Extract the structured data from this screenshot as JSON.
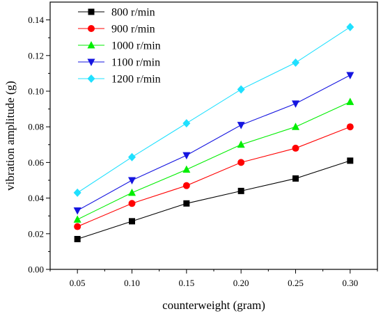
{
  "chart_data": {
    "type": "line",
    "xlabel": "counterweight (gram)",
    "ylabel": "vibration amplitude (g)",
    "xlim": [
      0.025,
      0.325
    ],
    "ylim": [
      0.0,
      0.15
    ],
    "x_ticks": [
      "0.05",
      "0.10",
      "0.15",
      "0.20",
      "0.25",
      "0.30"
    ],
    "y_ticks": [
      "0.00",
      "0.02",
      "0.04",
      "0.06",
      "0.08",
      "0.10",
      "0.12",
      "0.14"
    ],
    "x": [
      0.05,
      0.1,
      0.15,
      0.2,
      0.25,
      0.3
    ],
    "legend_position": "top-left",
    "grid": false,
    "series": [
      {
        "name": "800 r/min",
        "color": "#000000",
        "marker": "square",
        "values": [
          0.017,
          0.027,
          0.037,
          0.044,
          0.051,
          0.061
        ]
      },
      {
        "name": "900 r/min",
        "color": "#ff0000",
        "marker": "circle",
        "values": [
          0.024,
          0.037,
          0.047,
          0.06,
          0.068,
          0.08
        ]
      },
      {
        "name": "1000 r/min",
        "color": "#00ee00",
        "marker": "triangle-up",
        "values": [
          0.028,
          0.043,
          0.056,
          0.07,
          0.08,
          0.094
        ]
      },
      {
        "name": "1100 r/min",
        "color": "#1515e0",
        "marker": "triangle-down",
        "values": [
          0.033,
          0.05,
          0.064,
          0.081,
          0.093,
          0.109
        ]
      },
      {
        "name": "1200 r/min",
        "color": "#1fe0ff",
        "marker": "diamond",
        "values": [
          0.043,
          0.063,
          0.082,
          0.101,
          0.116,
          0.136
        ]
      }
    ]
  }
}
